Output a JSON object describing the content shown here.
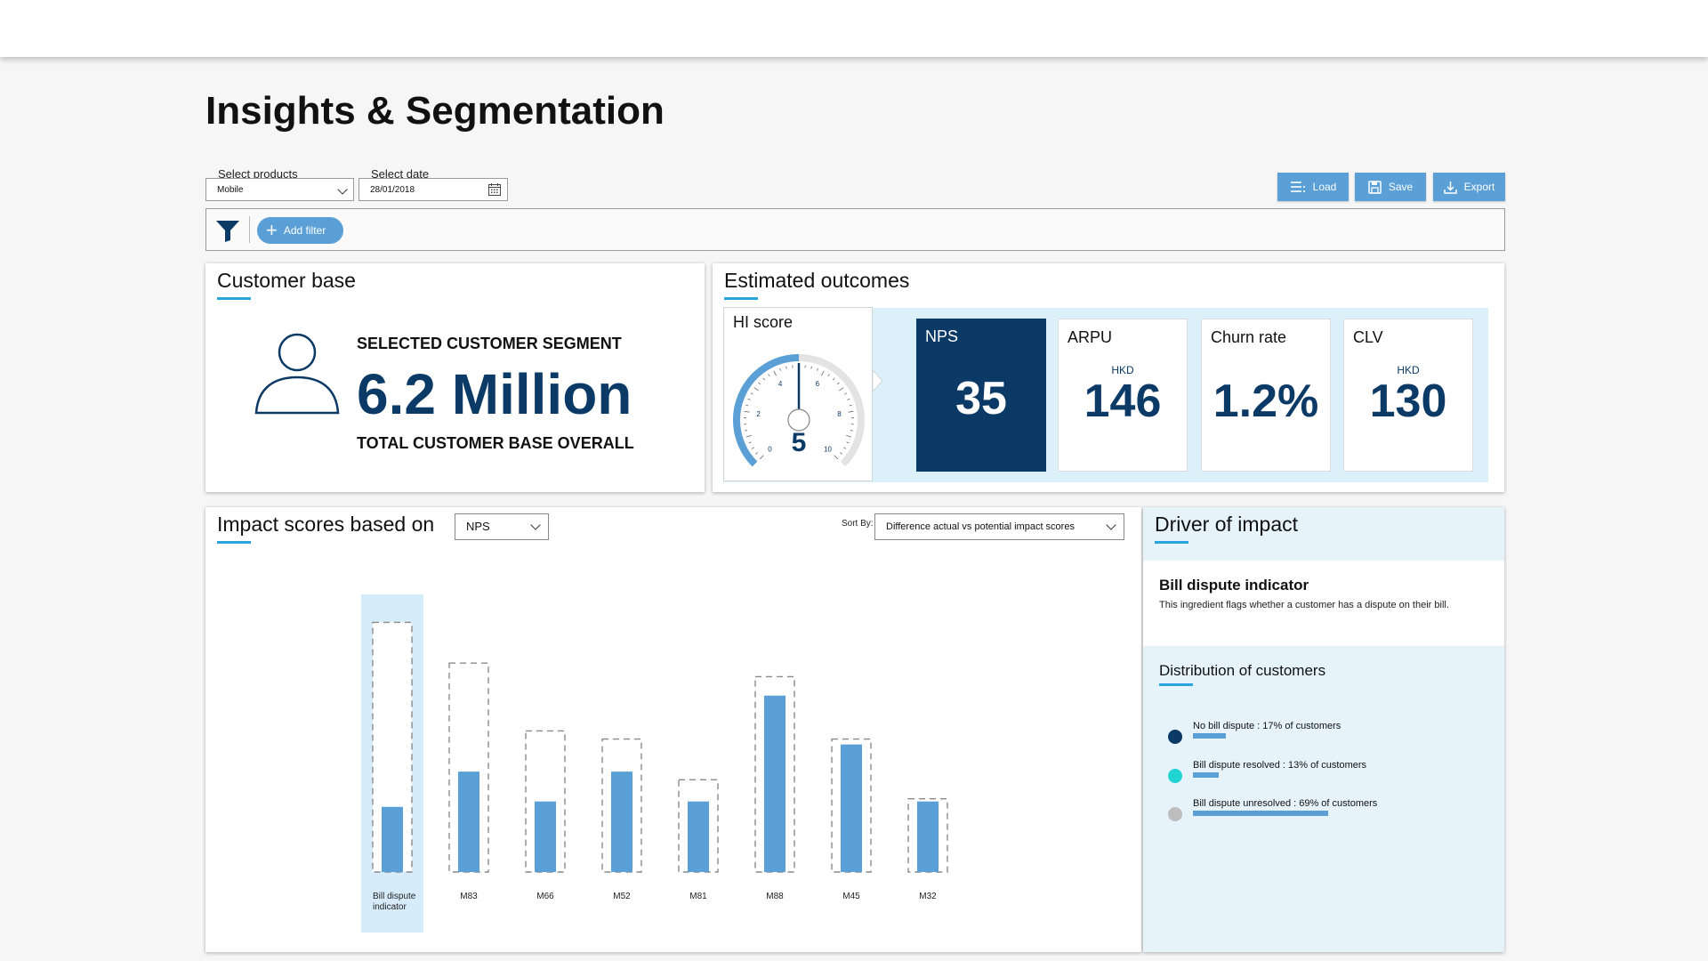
{
  "page": {
    "title": "Insights & Segmentation"
  },
  "controls": {
    "products": {
      "label": "Select products",
      "value": "Mobile"
    },
    "date": {
      "label": "Select date",
      "value": "28/01/2018"
    },
    "buttons": {
      "load": "Load",
      "save": "Save",
      "export": "Export"
    },
    "add_filter": "Add filter"
  },
  "customer_base": {
    "title": "Customer base",
    "heading": "SELECTED CUSTOMER SEGMENT",
    "value": "6.2 Million",
    "caption": "TOTAL CUSTOMER BASE OVERALL"
  },
  "outcomes": {
    "title": "Estimated outcomes",
    "hi_score": {
      "label": "HI score",
      "value": "5",
      "gauge_value": 5,
      "ticks": [
        "0",
        "2",
        "4",
        "6",
        "8",
        "10"
      ]
    },
    "metrics": [
      {
        "label": "NPS",
        "unit": "",
        "value": "35",
        "active": true
      },
      {
        "label": "ARPU",
        "unit": "HKD",
        "value": "146",
        "active": false
      },
      {
        "label": "Churn rate",
        "unit": "",
        "value": "1.2%",
        "active": false
      },
      {
        "label": "CLV",
        "unit": "HKD",
        "value": "130",
        "active": false
      }
    ]
  },
  "impact": {
    "title": "Impact scores based on",
    "metric_select": "NPS",
    "sort_label": "Sort By:",
    "sort_value": "Difference actual vs potential impact scores"
  },
  "chart_data": {
    "type": "bar",
    "categories": [
      "Bill dispute indicator",
      "M83",
      "M66",
      "M52",
      "M81",
      "M88",
      "M45",
      "M32"
    ],
    "series": [
      {
        "values": [
          24,
          37,
          26,
          37,
          26,
          65,
          47,
          26
        ]
      },
      {
        "values": [
          92,
          77,
          52,
          49,
          34,
          72,
          49,
          27
        ]
      }
    ],
    "highlighted": "Bill dispute indicator",
    "grid": false
  },
  "driver": {
    "title": "Driver of impact",
    "name": "Bill dispute indicator",
    "description": "This ingredient flags whether a customer has a dispute on their bill.",
    "distribution_title": "Distribution of customers",
    "legend": [
      {
        "label": "No bill dispute : 17% of customers",
        "share": 17,
        "color": "#0b3a66"
      },
      {
        "label": "Bill dispute resolved : 13% of customers",
        "share": 13,
        "color": "#22d3d3"
      },
      {
        "label": "Bill dispute unresolved : 69% of customers",
        "share": 69,
        "color": "#bdbdbd"
      }
    ]
  }
}
